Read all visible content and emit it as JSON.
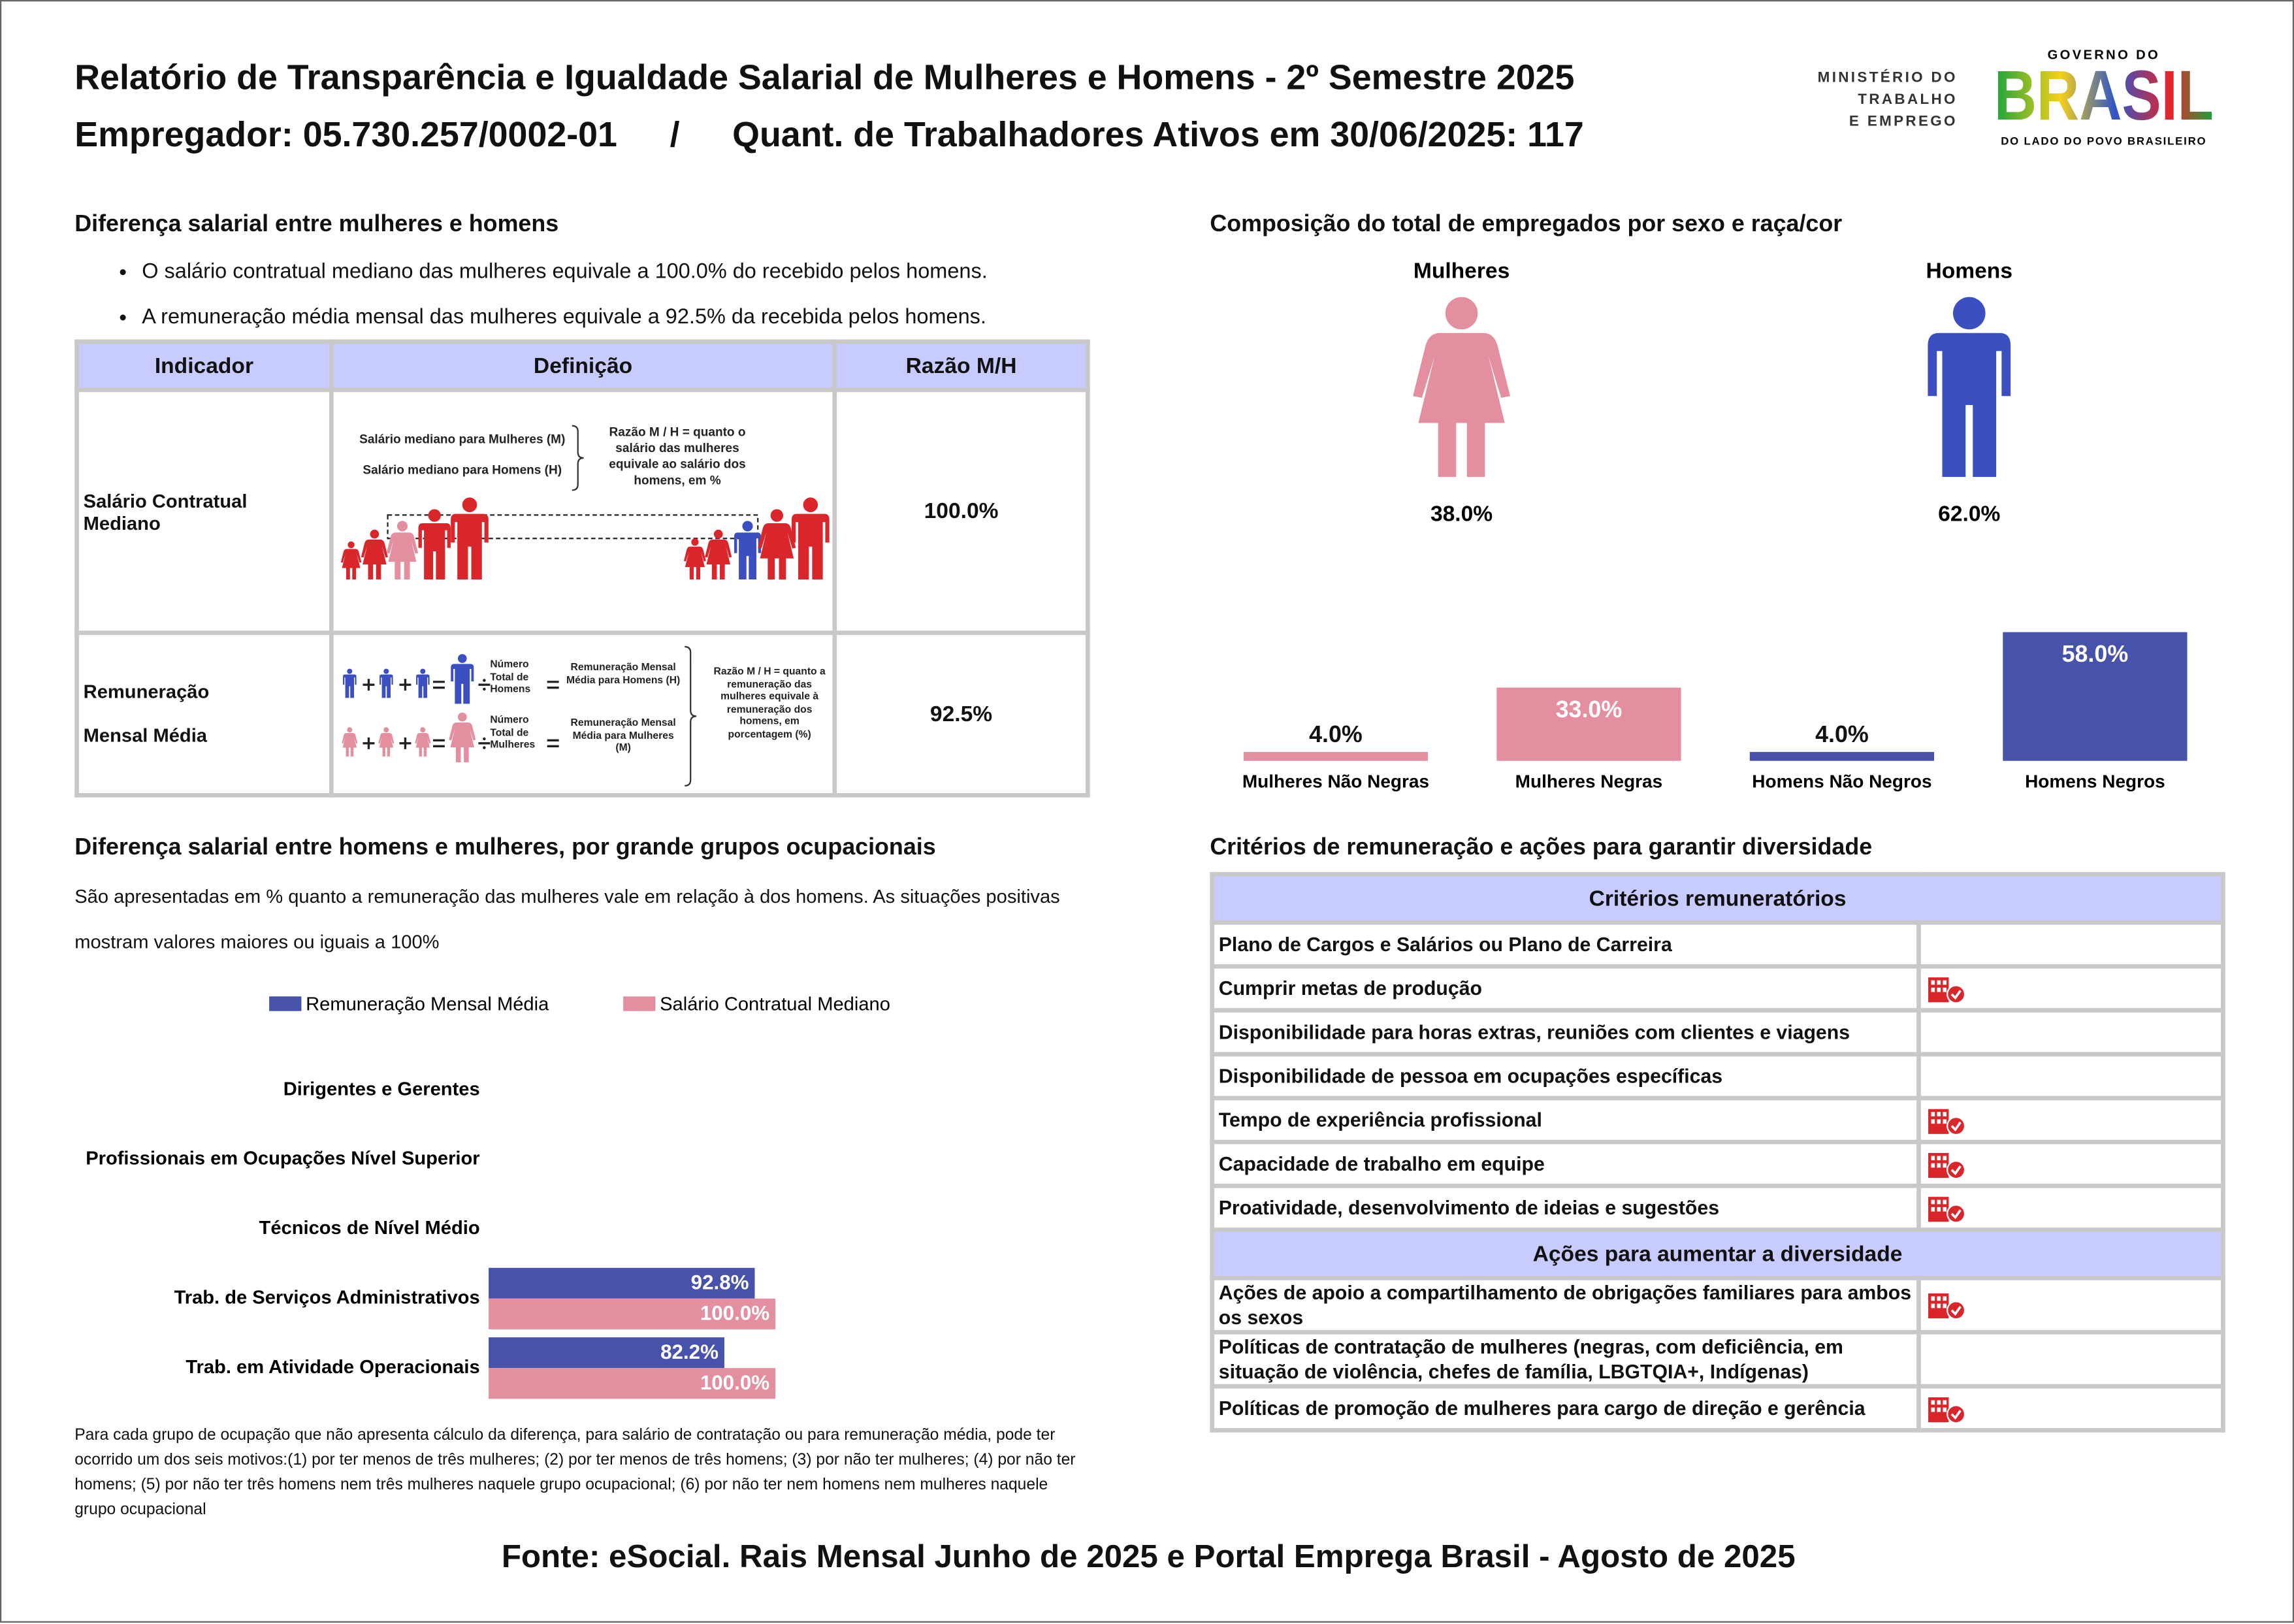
{
  "header": {
    "title": "Relatório de Transparência e Igualdade Salarial de Mulheres e Homens - 2º Semestre 2025",
    "employer": "Empregador: 05.730.257/0002-01",
    "separator": "/",
    "workers": "Quant. de Trabalhadores Ativos em 30/06/2025: 117"
  },
  "logo": {
    "ministry": [
      "MINISTÉRIO DO",
      "TRABALHO",
      "E EMPREGO"
    ],
    "government": "GOVERNO DO",
    "brand": "BRASIL",
    "tagline": "DO LADO DO POVO BRASILEIRO"
  },
  "salary_gap": {
    "title": "Diferença salarial entre mulheres e homens",
    "bullets": [
      "O salário contratual mediano das mulheres equivale a 100.0% do recebido pelos homens.",
      "A remuneração média mensal das mulheres equivale a 92.5% da recebida pelos homens."
    ],
    "table": {
      "headers": [
        "Indicador",
        "Definição",
        "Razão M/H"
      ],
      "rows": [
        {
          "indicator": "Salário Contratual Mediano",
          "ratio": "100.0%"
        },
        {
          "indicator": "Remuneração Mensal Média",
          "ratio": "92.5%"
        }
      ]
    },
    "diagram": {
      "median_women": "Salário mediano para Mulheres (M)",
      "median_men": "Salário mediano para Homens (H)",
      "median_ratio": "Razão M / H = quanto o salário das mulheres equivale ao salário dos homens, em %",
      "total_men": "Número Total de Homens",
      "average_men": "Remuneração Mensal Média para Homens (H)",
      "total_women": "Número Total de Mulheres",
      "average_women": "Remuneração Mensal Média para Mulheres (M)",
      "average_ratio": "Razão M / H = quanto a remuneração das mulheres equivale à remuneração dos homens, em porcentagem (%)"
    }
  },
  "composition": {
    "sex": [
      {
        "label": "Mulheres",
        "share": "38.0%",
        "color": "#e48fa0"
      },
      {
        "label": "Homens",
        "share": "62.0%",
        "color": "#3c4fc0"
      }
    ]
  },
  "chart_data": [
    {
      "type": "bar",
      "title": "Composição do total de empregados por sexo e raça/cor",
      "categories": [
        "Mulheres Não Negras",
        "Mulheres Negras",
        "Homens Não Negros",
        "Homens Negros"
      ],
      "values": [
        4.0,
        33.0,
        4.0,
        58.0
      ],
      "value_labels": [
        "4.0%",
        "33.0%",
        "4.0%",
        "58.0%"
      ],
      "colors": [
        "#e48fa0",
        "#e48fa0",
        "#4752ab",
        "#4752ab"
      ],
      "ylim": [
        0,
        60
      ]
    },
    {
      "type": "hbar",
      "title": "Diferença salarial entre homens e mulheres, por grande grupos ocupacionais",
      "subtitle": "São apresentadas em % quanto a remuneração das mulheres vale em relação à dos homens. As situações positivas mostram valores maiores ou iguais a 100%",
      "categories": [
        "Dirigentes e Gerentes",
        "Profissionais em Ocupações Nível Superior",
        "Técnicos de Nível Médio",
        "Trab. de Serviços Administrativos",
        "Trab. em Atividade Operacionais"
      ],
      "series": [
        {
          "name": "Remuneração Mensal Média",
          "color": "#4752ab",
          "values": [
            null,
            null,
            null,
            92.8,
            82.2
          ],
          "value_labels": [
            null,
            null,
            null,
            "92.8%",
            "82.2%"
          ]
        },
        {
          "name": "Salário Contratual Mediano",
          "color": "#e48fa0",
          "values": [
            null,
            null,
            null,
            100.0,
            100.0
          ],
          "value_labels": [
            null,
            null,
            null,
            "100.0%",
            "100.0%"
          ]
        }
      ],
      "xlim": [
        0,
        200
      ]
    }
  ],
  "footnote": "Para cada grupo de ocupação que não apresenta cálculo da diferença, para salário de contratação ou para remuneração média, pode ter ocorrido um dos seis motivos:(1) por ter menos de três mulheres; (2) por ter menos de três homens; (3) por não ter mulheres; (4) por não ter homens; (5) por não ter três homens nem três mulheres naquele grupo ocupacional; (6) por não ter nem homens nem mulheres naquele grupo ocupacional",
  "criteria": {
    "title": "Critérios de remuneração e ações para garantir diversidade",
    "sections": [
      {
        "header": "Critérios remuneratórios",
        "rows": [
          {
            "label": "Plano de Cargos e Salários ou Plano de Carreira",
            "checked": false
          },
          {
            "label": "Cumprir metas de produção",
            "checked": true
          },
          {
            "label": "Disponibilidade para horas extras, reuniões com clientes e viagens",
            "checked": false
          },
          {
            "label": "Disponibilidade de pessoa em ocupações específicas",
            "checked": false
          },
          {
            "label": "Tempo de experiência profissional",
            "checked": true
          },
          {
            "label": "Capacidade de trabalho em equipe",
            "checked": true
          },
          {
            "label": "Proatividade, desenvolvimento de ideias e sugestões",
            "checked": true
          }
        ]
      },
      {
        "header": "Ações para aumentar a diversidade",
        "rows": [
          {
            "label": "Ações de apoio a compartilhamento de obrigações familiares para ambos os sexos",
            "checked": true
          },
          {
            "label": "Políticas de contratação de mulheres (negras, com deficiência, em situação de violência, chefes de família, LBGTQIA+, Indígenas)",
            "checked": false
          },
          {
            "label": "Políticas de promoção de mulheres para cargo de direção e gerência",
            "checked": true
          }
        ]
      }
    ]
  },
  "source": "Fonte: eSocial. Rais Mensal Junho de 2025 e Portal Emprega Brasil - Agosto de 2025"
}
